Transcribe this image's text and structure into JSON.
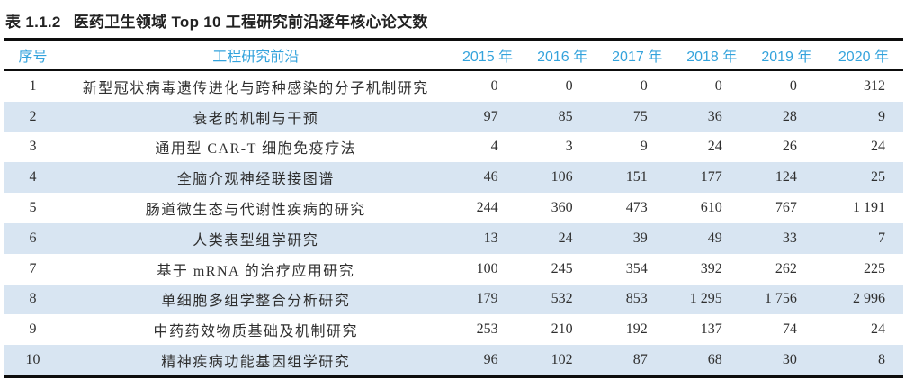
{
  "page": {
    "caption": {
      "label": "表 1.1.2",
      "title": "医药卫生领域 Top 10 工程研究前沿逐年核心论文数"
    }
  },
  "table": {
    "headers": {
      "rank": "序号",
      "front": "工程研究前沿",
      "years": [
        "2015 年",
        "2016 年",
        "2017 年",
        "2018 年",
        "2019 年",
        "2020 年"
      ]
    },
    "rows": [
      {
        "rank": "1",
        "front": "新型冠状病毒遗传进化与跨种感染的分子机制研究",
        "values": [
          "0",
          "0",
          "0",
          "0",
          "0",
          "312"
        ]
      },
      {
        "rank": "2",
        "front": "衰老的机制与干预",
        "values": [
          "97",
          "85",
          "75",
          "36",
          "28",
          "9"
        ]
      },
      {
        "rank": "3",
        "front": "通用型 CAR-T 细胞免疫疗法",
        "values": [
          "4",
          "3",
          "9",
          "24",
          "26",
          "24"
        ]
      },
      {
        "rank": "4",
        "front": "全脑介观神经联接图谱",
        "values": [
          "46",
          "106",
          "151",
          "177",
          "124",
          "25"
        ]
      },
      {
        "rank": "5",
        "front": "肠道微生态与代谢性疾病的研究",
        "values": [
          "244",
          "360",
          "473",
          "610",
          "767",
          "1 191"
        ]
      },
      {
        "rank": "6",
        "front": "人类表型组学研究",
        "values": [
          "13",
          "24",
          "39",
          "49",
          "33",
          "7"
        ]
      },
      {
        "rank": "7",
        "front": "基于 mRNA 的治疗应用研究",
        "values": [
          "100",
          "245",
          "354",
          "392",
          "262",
          "225"
        ]
      },
      {
        "rank": "8",
        "front": "单细胞多组学整合分析研究",
        "values": [
          "179",
          "532",
          "853",
          "1 295",
          "1 756",
          "2 996"
        ]
      },
      {
        "rank": "9",
        "front": "中药药效物质基础及机制研究",
        "values": [
          "253",
          "210",
          "192",
          "137",
          "74",
          "24"
        ]
      },
      {
        "rank": "10",
        "front": "精神疾病功能基因组学研究",
        "values": [
          "96",
          "102",
          "87",
          "68",
          "30",
          "8"
        ]
      }
    ]
  },
  "colors": {
    "header_text": "#34a3dc",
    "row_stripe": "#d8e5f2",
    "border": "#0d0d0d",
    "body_text": "#2f2f2f"
  }
}
